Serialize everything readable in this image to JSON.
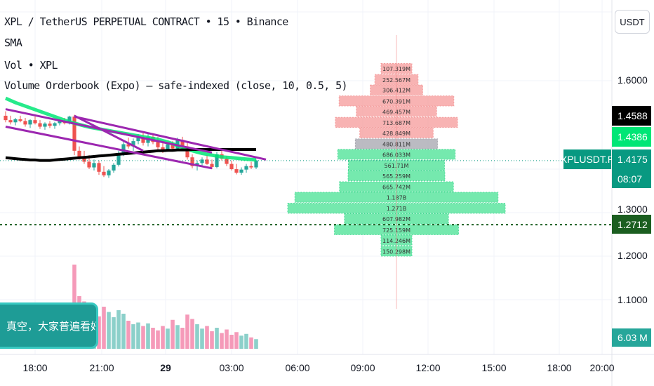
{
  "legend": {
    "symbol_line": "XPL / TetherUS PERPETUAL CONTRACT • 15 • Binance",
    "sma_line": "SMA",
    "vol_line": "Vol • XPL",
    "indicator_line": "Volume Orderbook (Expo) — safe-indexed (close, 10, 0.5, 5)"
  },
  "currency_button": "USDT",
  "price_axis": {
    "ticks": [
      "1.6000",
      "1.3000",
      "1.2000",
      "1.1000"
    ],
    "labels": {
      "price_1": "1.4588",
      "price_2": "1.4386",
      "symbol_tag": "XPLUSDT.P",
      "last_price": "1.4175",
      "countdown": "08:07",
      "dotted_level": "1.2712",
      "volume_value": "6.03 M"
    },
    "colors": {
      "price_1_bg": "#000000",
      "price_2_bg": "#00e676",
      "last_price_bg": "#089981",
      "dotted_level_bg": "#1b5e20",
      "volume_value_bg": "#26a69a"
    }
  },
  "banner_text": "真空，大家普遍看好。",
  "time_axis": [
    "18:00",
    "21:00",
    "29",
    "03:00",
    "06:00",
    "09:00",
    "12:00",
    "15:00",
    "18:00",
    "20:00"
  ],
  "chart_data": {
    "type": "bar",
    "title": "Volume Orderbook (Expo) — safe-indexed (close, 10, 0.5, 5)",
    "orientation": "horizontal",
    "ylim": [
      1.05,
      1.65
    ],
    "levels": [
      {
        "label": "107.319M",
        "center": 1.627,
        "width": 0.0245,
        "side": "ask"
      },
      {
        "label": "252.567M",
        "center": 1.602,
        "width": 0.0245,
        "side": "ask"
      },
      {
        "label": "306.412M",
        "center": 1.578,
        "width": 0.0245,
        "side": "ask"
      },
      {
        "label": "670.391M",
        "center": 1.553,
        "width": 0.0245,
        "side": "ask"
      },
      {
        "label": "469.457M",
        "center": 1.529,
        "width": 0.0245,
        "side": "ask"
      },
      {
        "label": "713.687M",
        "center": 1.504,
        "width": 0.0245,
        "side": "ask"
      },
      {
        "label": "428.849M",
        "center": 1.48,
        "width": 0.0245,
        "side": "ask"
      },
      {
        "label": "480.811M",
        "center": 1.455,
        "width": 0.0245,
        "side": "current"
      },
      {
        "label": "686.033M",
        "center": 1.431,
        "width": 0.0245,
        "side": "bid"
      },
      {
        "label": "561.71M",
        "center": 1.406,
        "width": 0.0245,
        "side": "bid"
      },
      {
        "label": "565.259M",
        "center": 1.382,
        "width": 0.0245,
        "side": "bid"
      },
      {
        "label": "665.742M",
        "center": 1.357,
        "width": 0.0245,
        "side": "bid"
      },
      {
        "label": "1.187B",
        "center": 1.333,
        "width": 0.0245,
        "side": "bid"
      },
      {
        "label": "1.271B",
        "center": 1.308,
        "width": 0.0245,
        "side": "bid"
      },
      {
        "label": "607.982M",
        "center": 1.284,
        "width": 0.0245,
        "side": "bid"
      },
      {
        "label": "725.159M",
        "center": 1.259,
        "width": 0.0245,
        "side": "bid"
      },
      {
        "label": "114.246M",
        "center": 1.235,
        "width": 0.0245,
        "side": "bid"
      },
      {
        "label": "150.298M",
        "center": 1.21,
        "width": 0.0245,
        "side": "bid"
      }
    ],
    "level_volume_values": [
      107.319,
      252.567,
      306.412,
      670.391,
      469.457,
      713.687,
      428.849,
      480.811,
      686.033,
      561.71,
      565.259,
      665.742,
      1187,
      1271,
      607.982,
      725.159,
      114.246,
      150.298
    ],
    "candles_ohlc": [
      [
        1.52,
        1.53,
        1.505,
        1.51
      ],
      [
        1.51,
        1.52,
        1.5,
        1.505
      ],
      [
        1.505,
        1.515,
        1.498,
        1.512
      ],
      [
        1.512,
        1.52,
        1.505,
        1.508
      ],
      [
        1.508,
        1.515,
        1.495,
        1.5
      ],
      [
        1.5,
        1.512,
        1.492,
        1.51
      ],
      [
        1.51,
        1.518,
        1.5,
        1.503
      ],
      [
        1.503,
        1.51,
        1.49,
        1.495
      ],
      [
        1.495,
        1.505,
        1.488,
        1.502
      ],
      [
        1.502,
        1.508,
        1.492,
        1.497
      ],
      [
        1.497,
        1.506,
        1.49,
        1.503
      ],
      [
        1.503,
        1.512,
        1.498,
        1.508
      ],
      [
        1.508,
        1.515,
        1.5,
        1.503
      ],
      [
        1.503,
        1.52,
        1.5,
        1.518
      ],
      [
        1.518,
        1.522,
        1.43,
        1.44
      ],
      [
        1.44,
        1.45,
        1.42,
        1.425
      ],
      [
        1.425,
        1.44,
        1.41,
        1.415
      ],
      [
        1.415,
        1.43,
        1.398,
        1.402
      ],
      [
        1.402,
        1.42,
        1.395,
        1.412
      ],
      [
        1.412,
        1.418,
        1.385,
        1.392
      ],
      [
        1.392,
        1.405,
        1.38,
        1.384
      ],
      [
        1.384,
        1.398,
        1.378,
        1.395
      ],
      [
        1.395,
        1.412,
        1.39,
        1.408
      ],
      [
        1.408,
        1.44,
        1.404,
        1.432
      ],
      [
        1.432,
        1.46,
        1.428,
        1.455
      ],
      [
        1.455,
        1.47,
        1.445,
        1.45
      ],
      [
        1.45,
        1.468,
        1.44,
        1.462
      ],
      [
        1.462,
        1.478,
        1.455,
        1.47
      ],
      [
        1.47,
        1.482,
        1.452,
        1.458
      ],
      [
        1.458,
        1.478,
        1.45,
        1.472
      ],
      [
        1.472,
        1.48,
        1.455,
        1.46
      ],
      [
        1.46,
        1.472,
        1.44,
        1.448
      ],
      [
        1.448,
        1.46,
        1.435,
        1.443
      ],
      [
        1.443,
        1.458,
        1.438,
        1.455
      ],
      [
        1.455,
        1.462,
        1.44,
        1.445
      ],
      [
        1.445,
        1.47,
        1.44,
        1.465
      ],
      [
        1.465,
        1.472,
        1.445,
        1.45
      ],
      [
        1.45,
        1.458,
        1.42,
        1.425
      ],
      [
        1.425,
        1.432,
        1.4,
        1.405
      ],
      [
        1.405,
        1.418,
        1.395,
        1.412
      ],
      [
        1.412,
        1.425,
        1.405,
        1.42
      ],
      [
        1.42,
        1.43,
        1.408,
        1.41
      ],
      [
        1.41,
        1.42,
        1.398,
        1.403
      ],
      [
        1.403,
        1.438,
        1.4,
        1.432
      ],
      [
        1.432,
        1.44,
        1.418,
        1.422
      ],
      [
        1.422,
        1.428,
        1.405,
        1.41
      ],
      [
        1.41,
        1.418,
        1.395,
        1.398
      ],
      [
        1.398,
        1.41,
        1.386,
        1.39
      ],
      [
        1.39,
        1.402,
        1.385,
        1.397
      ],
      [
        1.397,
        1.41,
        1.39,
        1.405
      ],
      [
        1.405,
        1.415,
        1.398,
        1.402
      ],
      [
        1.402,
        1.42,
        1.398,
        1.418
      ]
    ],
    "volume_values": [
      3.2,
      4.0,
      2.8,
      3.5,
      2.5,
      3.0,
      2.2,
      2.7,
      3.1,
      2.4,
      2.9,
      3.3,
      2.6,
      3.8,
      9.6,
      6.0,
      5.4,
      4.6,
      4.0,
      3.7,
      4.8,
      4.2,
      3.6,
      4.4,
      4.0,
      3.2,
      2.8,
      3.0,
      2.6,
      2.9,
      2.4,
      2.1,
      2.6,
      2.3,
      3.3,
      2.7,
      2.4,
      3.9,
      3.4,
      2.8,
      2.3,
      2.6,
      2.0,
      2.4,
      1.8,
      2.2,
      1.6,
      1.9,
      1.5,
      1.7,
      1.3,
      1.1
    ],
    "volume_ylim": [
      0,
      10
    ],
    "sma_values": [
      1.424,
      1.423,
      1.422,
      1.421,
      1.42,
      1.419,
      1.419,
      1.418,
      1.418,
      1.418,
      1.419,
      1.42,
      1.421,
      1.422,
      1.423,
      1.424,
      1.425,
      1.426,
      1.427,
      1.428,
      1.429,
      1.43,
      1.431,
      1.432,
      1.433,
      1.434,
      1.435,
      1.436,
      1.437,
      1.438,
      1.439,
      1.44,
      1.44,
      1.441,
      1.441,
      1.442,
      1.442,
      1.442,
      1.443,
      1.443,
      1.443,
      1.443,
      1.443,
      1.443,
      1.443,
      1.443,
      1.443,
      1.443,
      1.443,
      1.443,
      1.443,
      1.443
    ],
    "ma_green_values": [
      1.56,
      1.555,
      1.55,
      1.546,
      1.542,
      1.538,
      1.534,
      1.53,
      1.526,
      1.522,
      1.518,
      1.514,
      1.51,
      1.506,
      1.503,
      1.5,
      1.497,
      1.494,
      1.492,
      1.49,
      1.488,
      1.486,
      1.484,
      1.482,
      1.48,
      1.478,
      1.476,
      1.474,
      1.472,
      1.47,
      1.468,
      1.466,
      1.463,
      1.46,
      1.456,
      1.452,
      1.448,
      1.444,
      1.44,
      1.437,
      1.434,
      1.432,
      1.43,
      1.428,
      1.426,
      1.425,
      1.424,
      1.423,
      1.422,
      1.421,
      1.42,
      1.419
    ],
    "trendlines": [
      {
        "from": [
          0,
          1.535
        ],
        "to": [
          42,
          1.436
        ]
      },
      {
        "from": [
          0,
          1.495
        ],
        "to": [
          42,
          1.4
        ]
      },
      {
        "from": [
          14,
          1.518
        ],
        "to": [
          53,
          1.42
        ]
      },
      {
        "from": [
          14,
          1.52
        ],
        "to": [
          28,
          1.44
        ]
      }
    ],
    "dotted_level": 1.2712,
    "last_price": 1.4175,
    "colors": {
      "ask": "#f7a6a6",
      "bid": "#5ee6a0",
      "current": "#b0b0b8",
      "candle_up": "#26a69a",
      "candle_down": "#ef5350",
      "sma": "#000000",
      "ma_green": "#00e676",
      "trendline": "#9c27b0",
      "vol_up": "#80cbc4",
      "vol_down": "#f48fb1"
    }
  }
}
